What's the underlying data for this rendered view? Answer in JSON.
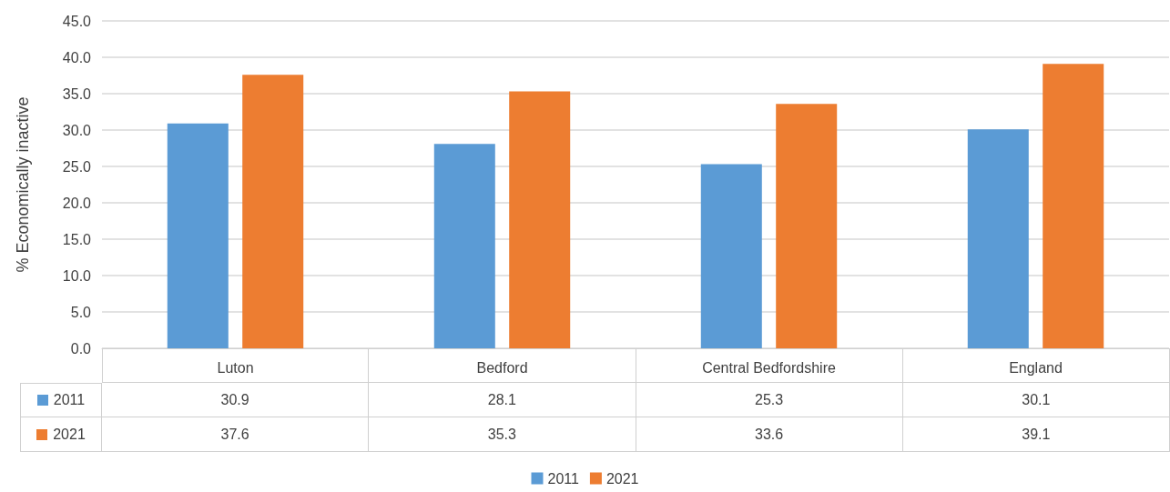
{
  "chart_data": {
    "type": "bar",
    "ylabel": "% Economically inactive",
    "categories": [
      "Luton",
      "Bedford",
      "Central Bedfordshire",
      "England"
    ],
    "series": [
      {
        "name": "2011",
        "color": "#5b9bd5",
        "values": [
          30.9,
          28.1,
          25.3,
          30.1
        ]
      },
      {
        "name": "2021",
        "color": "#ed7d31",
        "values": [
          37.6,
          35.3,
          33.6,
          39.1
        ]
      }
    ],
    "ylim": [
      0,
      45
    ],
    "yticks": [
      {
        "value": 0,
        "label": "0.0"
      },
      {
        "value": 5,
        "label": "5.0"
      },
      {
        "value": 10,
        "label": "10.0"
      },
      {
        "value": 15,
        "label": "15.0"
      },
      {
        "value": 20,
        "label": "20.0"
      },
      {
        "value": 25,
        "label": "25.0"
      },
      {
        "value": 30,
        "label": "30.0"
      },
      {
        "value": 35,
        "label": "35.0"
      },
      {
        "value": 40,
        "label": "40.0"
      },
      {
        "value": 45,
        "label": "45.0"
      }
    ],
    "grid": "y",
    "legend": "bottom",
    "data_labels": true
  }
}
